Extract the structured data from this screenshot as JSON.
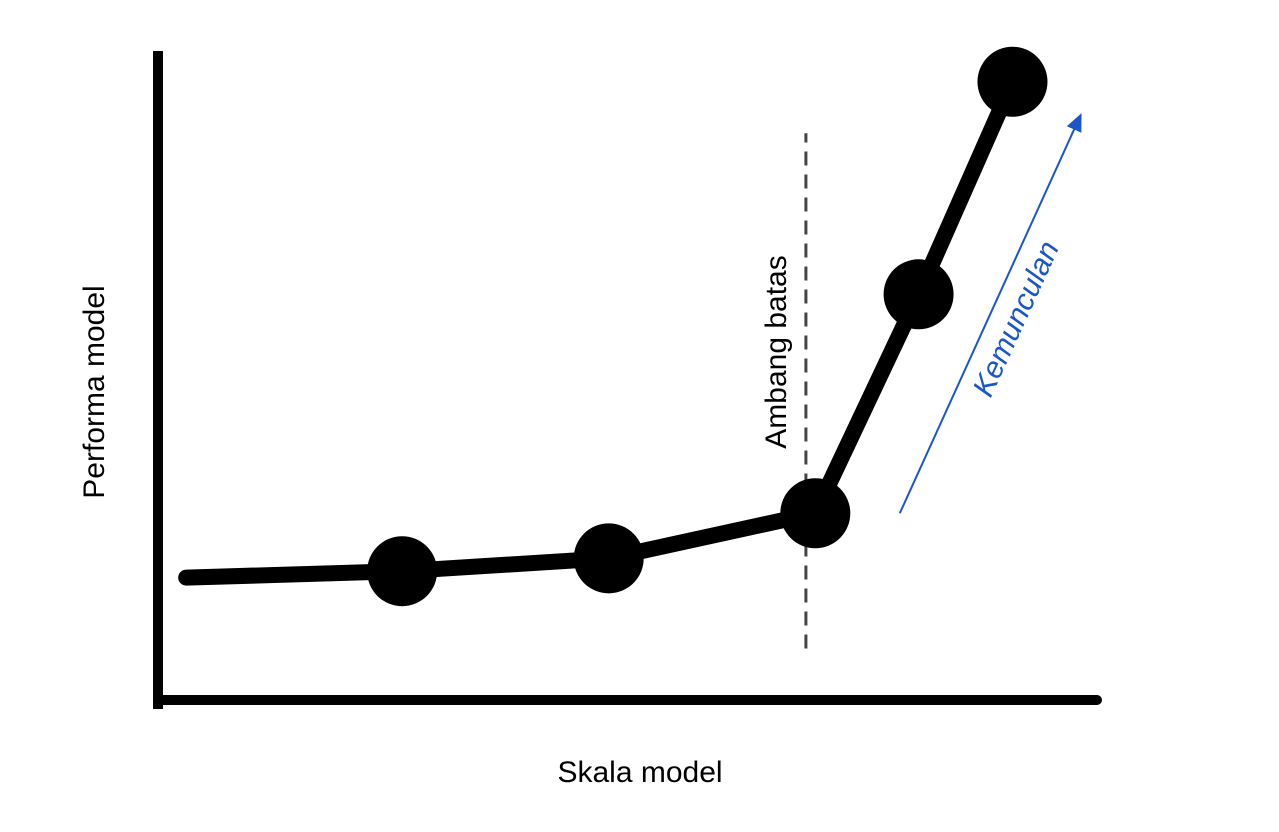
{
  "chart_data": {
    "type": "line",
    "title": "",
    "xlabel": "Skala model",
    "ylabel": "Performa model",
    "x_ticks": "none",
    "y_ticks": "none",
    "grid": false,
    "legend": "none",
    "xlim": [
      0,
      10
    ],
    "ylim": [
      0,
      10
    ],
    "series": [
      {
        "line_start": {
          "x": 0.3,
          "y": 1.9
        },
        "points": [
          {
            "x": 2.6,
            "y": 2.0
          },
          {
            "x": 4.8,
            "y": 2.2
          },
          {
            "x": 7.0,
            "y": 2.9
          },
          {
            "x": 8.1,
            "y": 6.3
          },
          {
            "x": 9.1,
            "y": 9.6
          }
        ],
        "color": "#000000"
      }
    ],
    "annotations": {
      "threshold": {
        "label": "Ambang batas",
        "x": 6.9,
        "y_range": [
          0.8,
          8.8
        ],
        "style": "dashed",
        "color": "#444444"
      },
      "emergence": {
        "label": "Kemunculan",
        "arrow_from": {
          "x": 7.9,
          "y": 2.9
        },
        "arrow_to": {
          "x": 9.8,
          "y": 9.0
        },
        "color": "#1a56c9"
      }
    }
  }
}
